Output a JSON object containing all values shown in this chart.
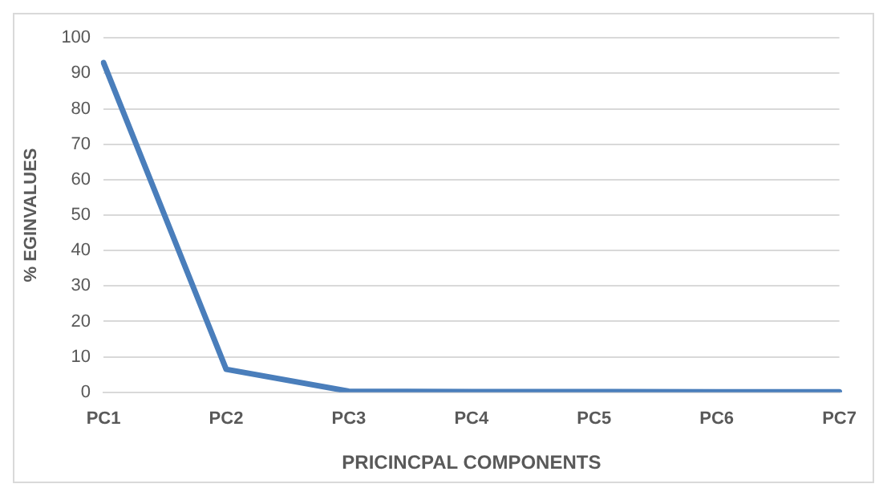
{
  "chart_data": {
    "type": "line",
    "xlabel": "PRICINCPAL COMPONENTS",
    "ylabel": "% EGINVALUES",
    "categories": [
      "PC1",
      "PC2",
      "PC3",
      "PC4",
      "PC5",
      "PC6",
      "PC7"
    ],
    "series": [
      {
        "color": "#4a7ebb",
        "values": [
          93,
          6.5,
          0.3,
          0.2,
          0.2,
          0.1,
          0.1
        ]
      }
    ],
    "ylim": [
      0,
      100
    ],
    "yticks": [
      0,
      10,
      20,
      30,
      40,
      50,
      60,
      70,
      80,
      90,
      100
    ],
    "grid": "y",
    "legend": false,
    "marker": "none",
    "line_style": "solid"
  }
}
